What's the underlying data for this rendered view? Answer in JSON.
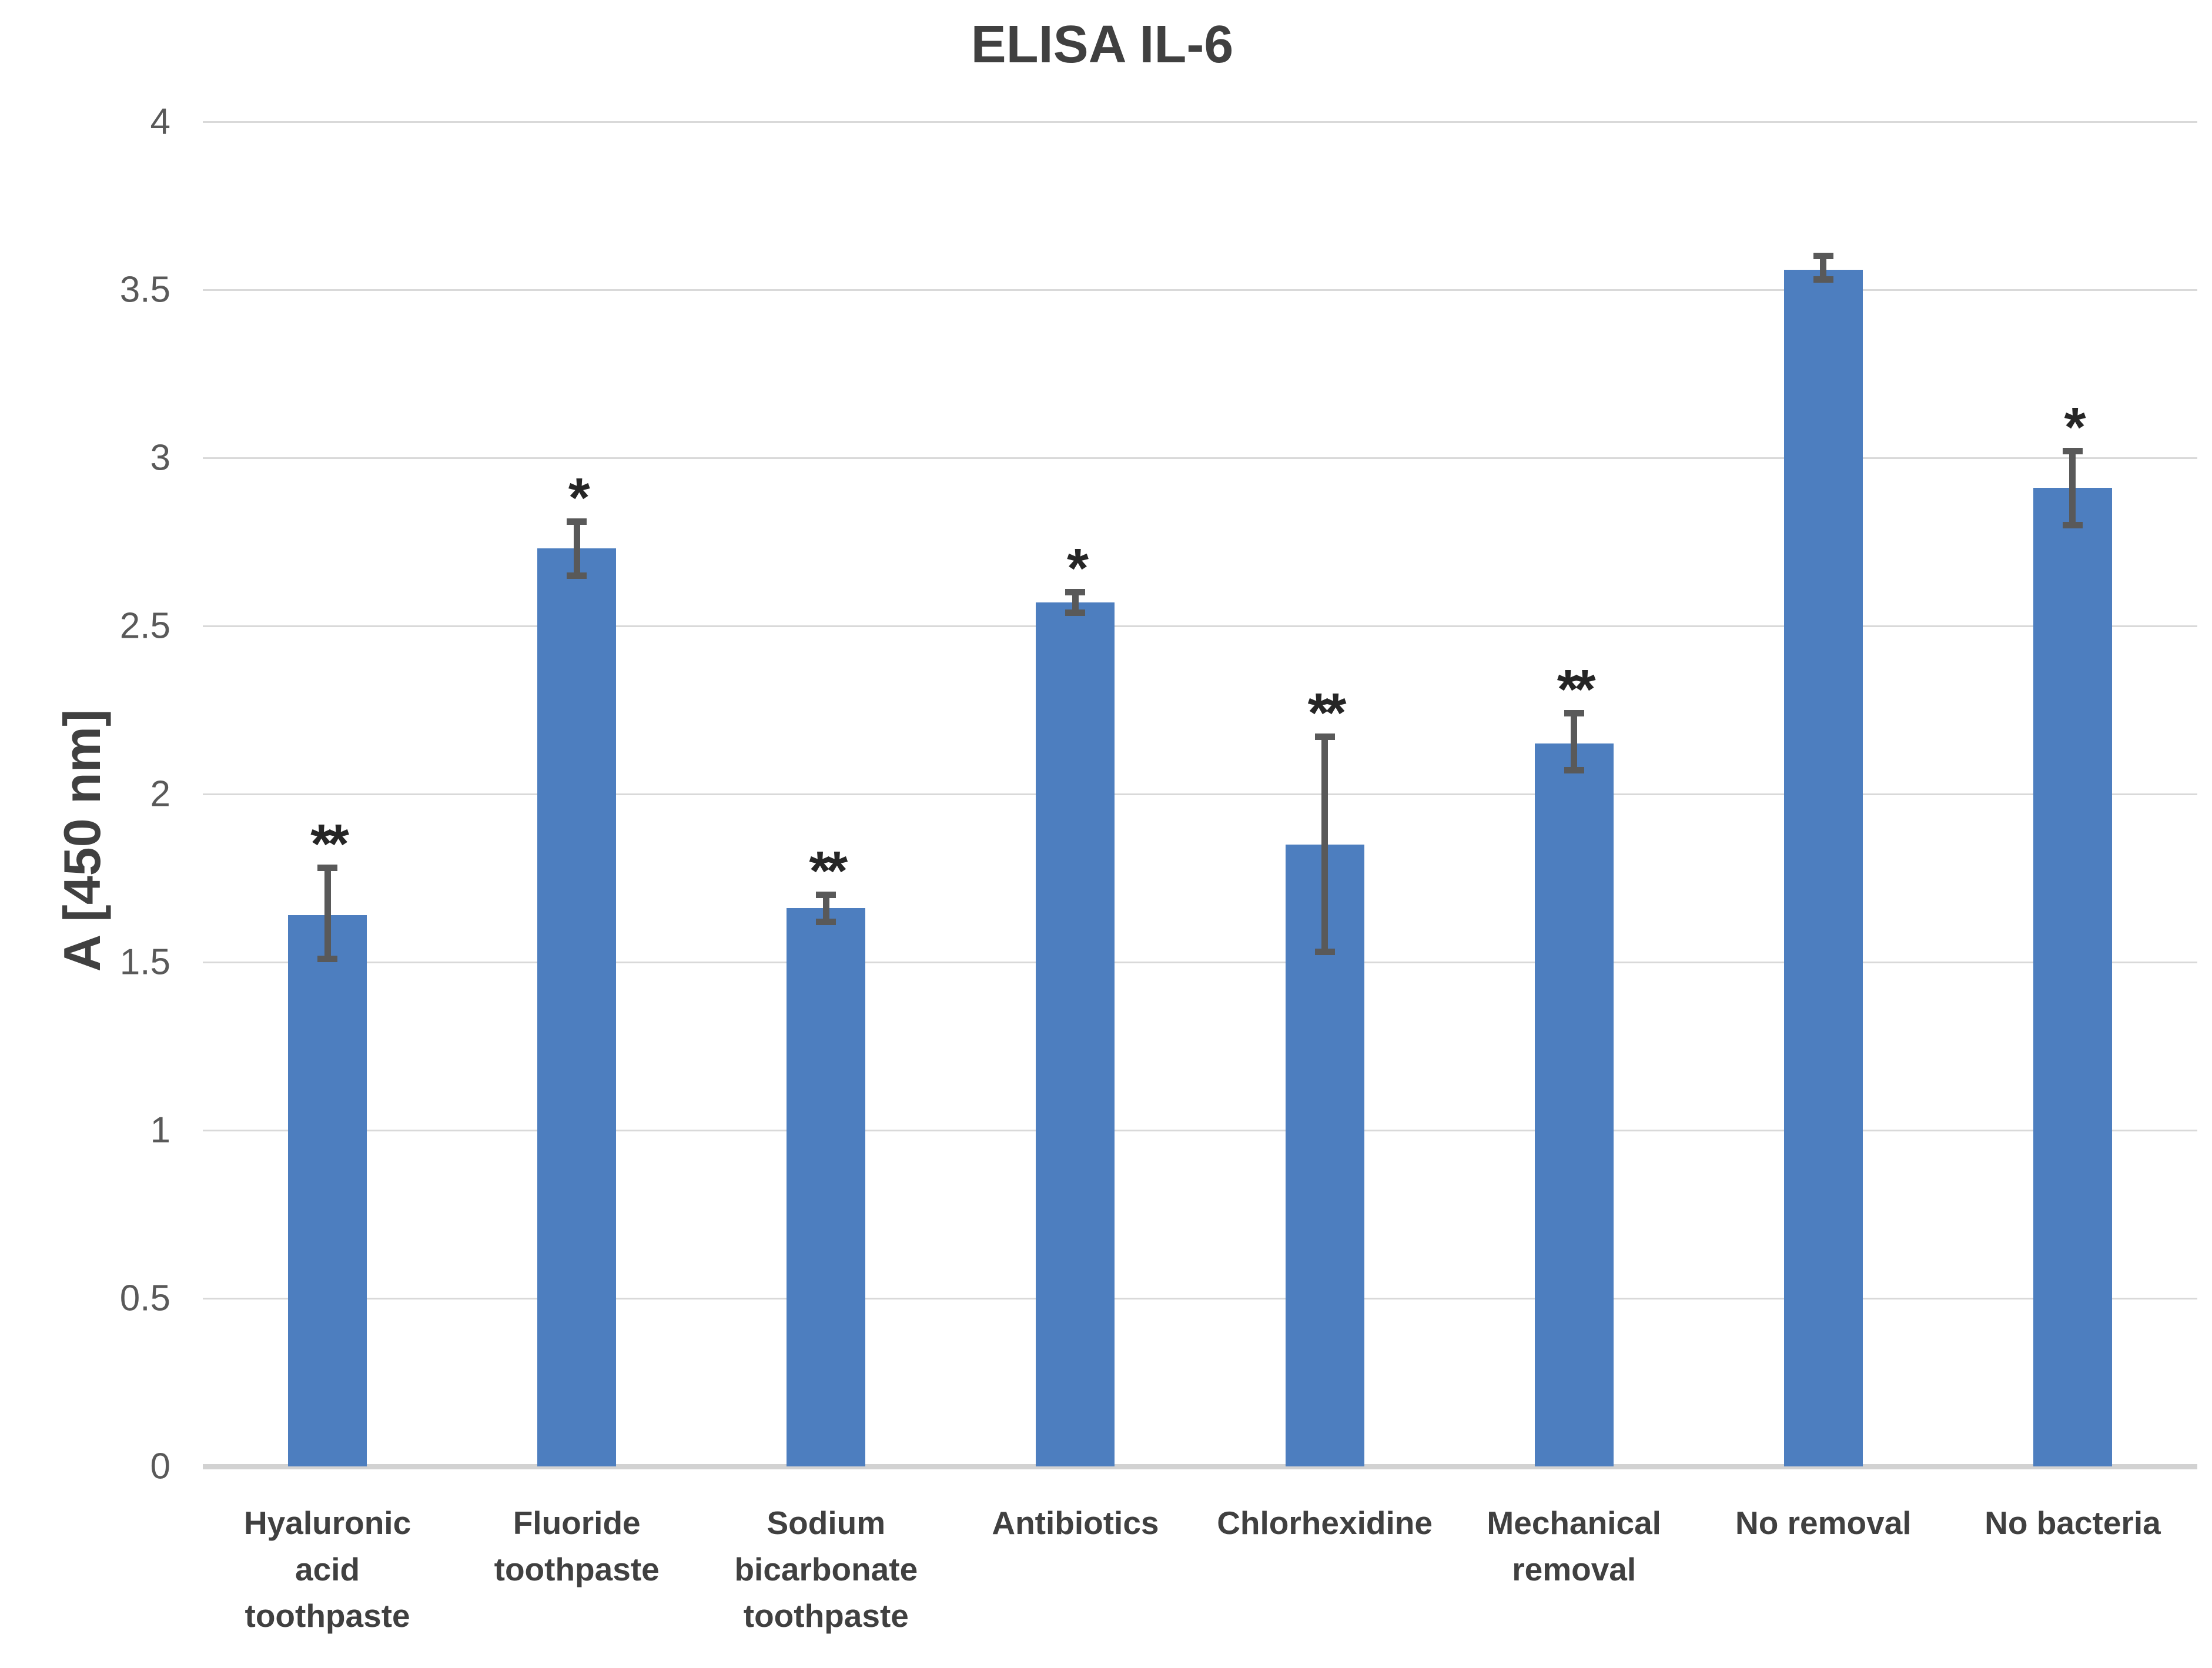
{
  "chart_data": {
    "type": "bar",
    "title": "ELISA IL-6",
    "xlabel": "",
    "ylabel": "A [450 nm]",
    "ylim": [
      0,
      4
    ],
    "yticks": [
      0,
      0.5,
      1,
      1.5,
      2,
      2.5,
      3,
      3.5,
      4
    ],
    "ytick_labels": [
      "0",
      "0.5",
      "1",
      "1.5",
      "2",
      "2.5",
      "3",
      "3.5",
      "4"
    ],
    "grid": "horizontal-gridlines-on",
    "legend": "none",
    "categories": [
      "Hyaluronic acid toothpaste",
      "Fluoride toothpaste",
      "Sodium bicarbonate toothpaste",
      "Antibiotics",
      "Chlorhexidine",
      "Mechanical removal",
      "No removal",
      "No bacteria"
    ],
    "category_lines": [
      [
        "Hyaluronic",
        "acid",
        "toothpaste"
      ],
      [
        "Fluoride",
        "toothpaste"
      ],
      [
        "Sodium",
        "bicarbonate",
        "toothpaste"
      ],
      [
        "Antibiotics"
      ],
      [
        "Chlorhexidine"
      ],
      [
        "Mechanical",
        "removal"
      ],
      [
        "No removal"
      ],
      [
        "No bacteria"
      ]
    ],
    "series": [
      {
        "name": "A [450 nm]",
        "values": [
          1.64,
          2.73,
          1.66,
          2.57,
          1.85,
          2.15,
          3.56,
          2.91
        ],
        "error_plus": [
          0.14,
          0.08,
          0.04,
          0.03,
          0.32,
          0.09,
          0.04,
          0.11
        ],
        "error_minus": [
          0.13,
          0.08,
          0.04,
          0.03,
          0.32,
          0.08,
          0.03,
          0.11
        ],
        "significance": [
          "**",
          "*",
          "**",
          "*",
          "**",
          "**",
          "",
          "*"
        ]
      }
    ],
    "colors": {
      "bar": "#4d7ebf",
      "error_bar": "#595959",
      "gridline": "#d9d9d9",
      "axis_line": "#d2d2d2",
      "title_text": "#404040",
      "tick_text": "#595959",
      "significance_text": "#262626"
    }
  }
}
